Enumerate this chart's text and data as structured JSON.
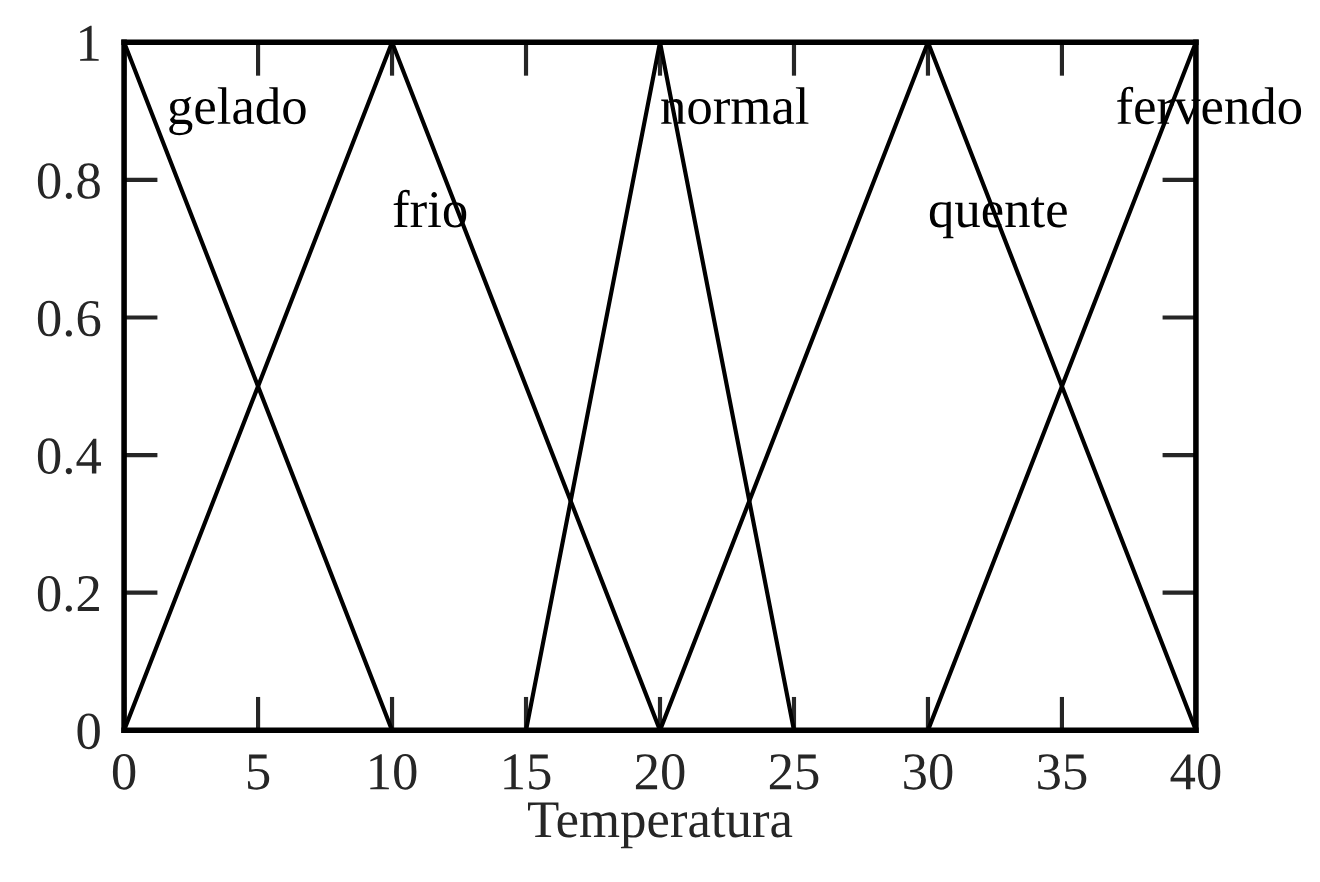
{
  "chart_data": {
    "type": "line",
    "xlabel": "Temperatura",
    "xlim": [
      0,
      40
    ],
    "xticks": [
      0,
      5,
      10,
      15,
      20,
      25,
      30,
      35,
      40
    ],
    "ylim": [
      0,
      1
    ],
    "yticks": [
      0,
      0.2,
      0.4,
      0.6,
      0.8,
      1
    ],
    "grid": false,
    "legend": false,
    "line_style": "solid",
    "series": [
      {
        "name": "gelado",
        "color": "#000000",
        "x": [
          0,
          10
        ],
        "values": [
          1,
          0
        ]
      },
      {
        "name": "frio",
        "color": "#000000",
        "x": [
          0,
          10,
          20
        ],
        "values": [
          0,
          1,
          0
        ]
      },
      {
        "name": "normal",
        "color": "#000000",
        "x": [
          15,
          20,
          25
        ],
        "values": [
          0,
          1,
          0
        ]
      },
      {
        "name": "quente",
        "color": "#000000",
        "x": [
          20,
          30,
          40
        ],
        "values": [
          0,
          1,
          0
        ]
      },
      {
        "name": "fervendo",
        "color": "#000000",
        "x": [
          30,
          40
        ],
        "values": [
          0,
          1
        ]
      }
    ]
  }
}
